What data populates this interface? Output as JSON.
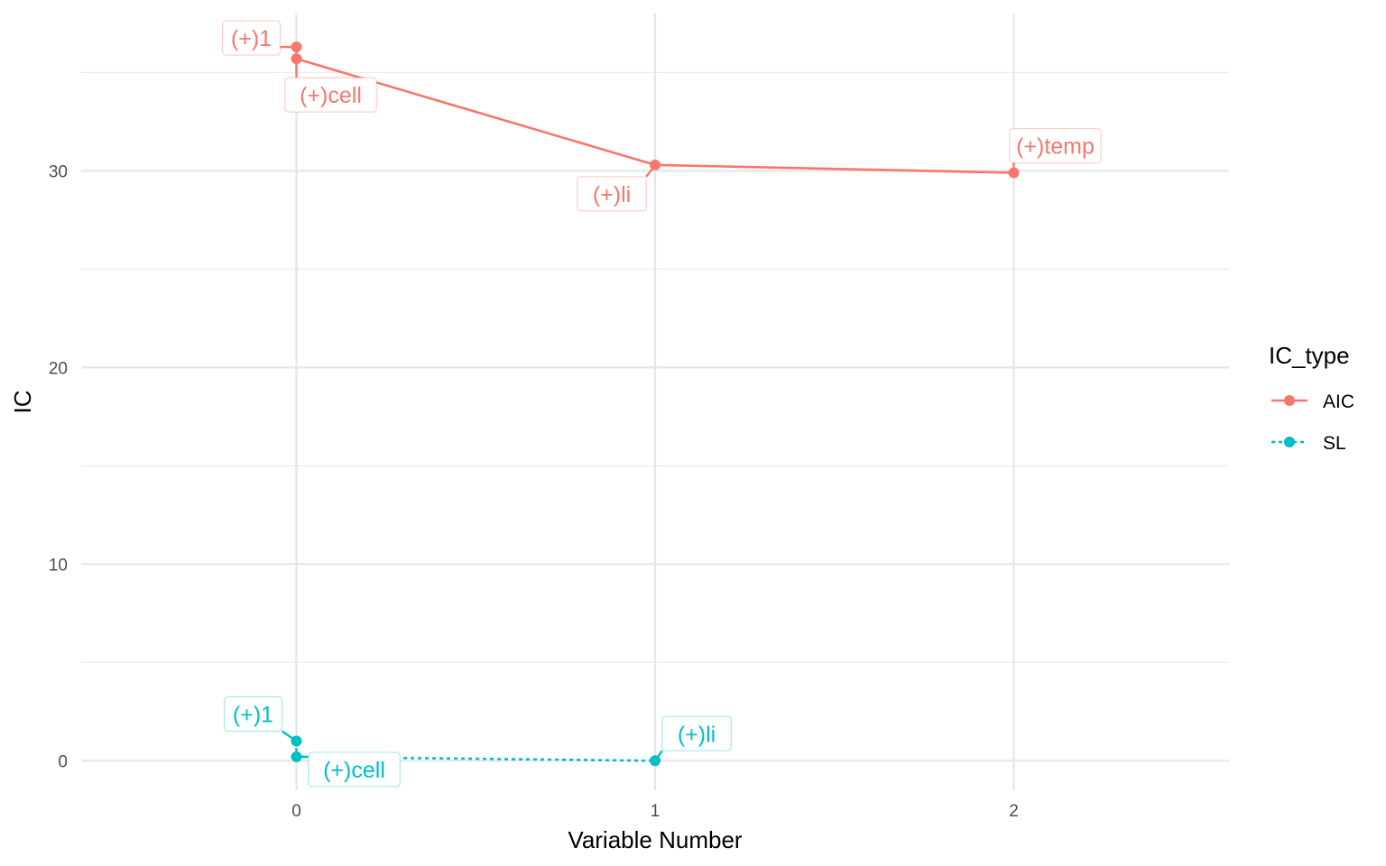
{
  "chart_data": {
    "type": "line",
    "xlabel": "Variable Number",
    "ylabel": "IC",
    "xlim": [
      -0.6,
      2.6
    ],
    "ylim": [
      -1.5,
      38
    ],
    "x_ticks": [
      0,
      1,
      2
    ],
    "y_ticks": [
      0,
      10,
      20,
      30
    ],
    "y_minor_ticks": [
      5,
      15,
      25,
      35
    ],
    "grid": true,
    "legend": {
      "title": "IC_type",
      "position": "right"
    },
    "series": [
      {
        "name": "AIC",
        "color": "#F8766D",
        "line_style": "solid",
        "points": [
          {
            "x": 0,
            "y": 36.3,
            "label": "(+)1"
          },
          {
            "x": 0,
            "y": 35.7,
            "label": "(+)cell"
          },
          {
            "x": 1,
            "y": 30.3,
            "label": "(+)li"
          },
          {
            "x": 2,
            "y": 29.9,
            "label": "(+)temp"
          }
        ]
      },
      {
        "name": "SL",
        "color": "#00BFC4",
        "line_style": "dotted",
        "points": [
          {
            "x": 0,
            "y": 1.0,
            "label": "(+)1"
          },
          {
            "x": 0,
            "y": 0.2,
            "label": "(+)cell"
          },
          {
            "x": 1,
            "y": 0.0,
            "label": "(+)li"
          }
        ]
      }
    ]
  }
}
